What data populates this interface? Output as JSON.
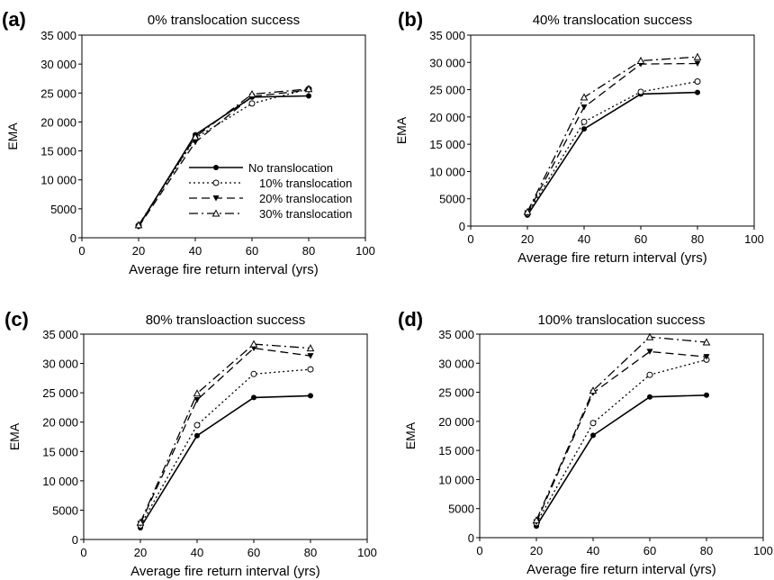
{
  "chart_data": [
    {
      "panel_label": "(a)",
      "type": "line",
      "title": "0% translocation success",
      "xlabel": "Average fire return interval (yrs)",
      "ylabel": "EMA",
      "xlim": [
        0,
        100
      ],
      "ylim": [
        0,
        35000
      ],
      "x_ticks": [
        "0",
        "20",
        "40",
        "60",
        "80",
        "100"
      ],
      "y_ticks": [
        "0",
        "5000",
        "10 000",
        "15 000",
        "20 000",
        "25 000",
        "30 000",
        "35 000"
      ],
      "legend_position": "center-right",
      "show_legend": true,
      "series": [
        {
          "name": "No translocation",
          "x": [
            20,
            40,
            60,
            80
          ],
          "values": [
            2000,
            17800,
            24300,
            24500
          ]
        },
        {
          "name": "10% translocation",
          "x": [
            20,
            40,
            60,
            80
          ],
          "values": [
            2100,
            17200,
            23200,
            25700
          ]
        },
        {
          "name": "20% translocation",
          "x": [
            20,
            40,
            60,
            80
          ],
          "values": [
            1900,
            16500,
            24400,
            25500
          ]
        },
        {
          "name": "30% translocation",
          "x": [
            20,
            40,
            60,
            80
          ],
          "values": [
            2200,
            17400,
            24800,
            25700
          ]
        }
      ]
    },
    {
      "panel_label": "(b)",
      "type": "line",
      "title": "40% translocation success",
      "xlabel": "Average fire return interval (yrs)",
      "ylabel": "EMA",
      "xlim": [
        0,
        100
      ],
      "ylim": [
        0,
        35000
      ],
      "x_ticks": [
        "0",
        "20",
        "40",
        "60",
        "80",
        "100"
      ],
      "y_ticks": [
        "0",
        "5000",
        "10 000",
        "15 000",
        "20 000",
        "25 000",
        "30 000",
        "35 000"
      ],
      "show_legend": false,
      "series": [
        {
          "name": "No translocation",
          "x": [
            20,
            40,
            60,
            80
          ],
          "values": [
            2000,
            17800,
            24200,
            24500
          ]
        },
        {
          "name": "10% translocation",
          "x": [
            20,
            40,
            60,
            80
          ],
          "values": [
            2300,
            19100,
            24600,
            26500
          ]
        },
        {
          "name": "20% translocation",
          "x": [
            20,
            40,
            60,
            80
          ],
          "values": [
            2400,
            21800,
            29700,
            29800
          ]
        },
        {
          "name": "30% translocation",
          "x": [
            20,
            40,
            60,
            80
          ],
          "values": [
            2600,
            23600,
            30300,
            31000
          ]
        }
      ]
    },
    {
      "panel_label": "(c)",
      "type": "line",
      "title": "80% transloaction success",
      "xlabel": "Average fire return interval (yrs)",
      "ylabel": "EMA",
      "xlim": [
        0,
        100
      ],
      "ylim": [
        0,
        35000
      ],
      "x_ticks": [
        "0",
        "20",
        "40",
        "60",
        "80",
        "100"
      ],
      "y_ticks": [
        "0",
        "5000",
        "10 000",
        "15 000",
        "20 000",
        "25 000",
        "30 000",
        "35 000"
      ],
      "show_legend": false,
      "series": [
        {
          "name": "No translocation",
          "x": [
            20,
            40,
            60,
            80
          ],
          "values": [
            2000,
            17700,
            24200,
            24500
          ]
        },
        {
          "name": "10% translocation",
          "x": [
            20,
            40,
            60,
            80
          ],
          "values": [
            2400,
            19500,
            28200,
            29000
          ]
        },
        {
          "name": "20% translocation",
          "x": [
            20,
            40,
            60,
            80
          ],
          "values": [
            2700,
            23800,
            32600,
            31300
          ]
        },
        {
          "name": "30% translocation",
          "x": [
            20,
            40,
            60,
            80
          ],
          "values": [
            2900,
            24900,
            33300,
            32600
          ]
        }
      ]
    },
    {
      "panel_label": "(d)",
      "type": "line",
      "title": "100% translocation success",
      "xlabel": "Average fire return interval (yrs)",
      "ylabel": "EMA",
      "xlim": [
        0,
        100
      ],
      "ylim": [
        0,
        35000
      ],
      "x_ticks": [
        "0",
        "20",
        "40",
        "60",
        "80",
        "100"
      ],
      "y_ticks": [
        "0",
        "5000",
        "10 000",
        "15 000",
        "20 000",
        "25 000",
        "30 000",
        "35 000"
      ],
      "show_legend": false,
      "series": [
        {
          "name": "No translocation",
          "x": [
            20,
            40,
            60,
            80
          ],
          "values": [
            2000,
            17600,
            24200,
            24500
          ]
        },
        {
          "name": "10% translocation",
          "x": [
            20,
            40,
            60,
            80
          ],
          "values": [
            2500,
            19700,
            28000,
            30600
          ]
        },
        {
          "name": "20% translocation",
          "x": [
            20,
            40,
            60,
            80
          ],
          "values": [
            2700,
            24900,
            32000,
            31100
          ]
        },
        {
          "name": "30% translocation",
          "x": [
            20,
            40,
            60,
            80
          ],
          "values": [
            3000,
            25300,
            34500,
            33600
          ]
        }
      ]
    }
  ]
}
